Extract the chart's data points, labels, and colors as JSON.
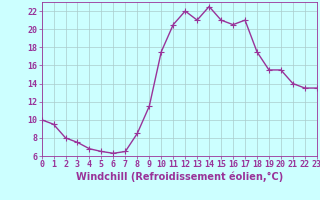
{
  "x": [
    0,
    1,
    2,
    3,
    4,
    5,
    6,
    7,
    8,
    9,
    10,
    11,
    12,
    13,
    14,
    15,
    16,
    17,
    18,
    19,
    20,
    21,
    22,
    23
  ],
  "y": [
    10,
    9.5,
    8,
    7.5,
    6.8,
    6.5,
    6.3,
    6.5,
    8.5,
    11.5,
    17.5,
    20.5,
    22,
    21,
    22.5,
    21,
    20.5,
    21,
    17.5,
    15.5,
    15.5,
    14,
    13.5,
    13.5
  ],
  "line_color": "#993399",
  "marker": "+",
  "marker_size": 4,
  "linewidth": 1.0,
  "bg_color": "#ccffff",
  "grid_color": "#aacccc",
  "xlabel": "Windchill (Refroidissement éolien,°C)",
  "xlabel_color": "#993399",
  "xlabel_fontsize": 7,
  "tick_color": "#993399",
  "tick_fontsize": 6,
  "ylim": [
    6,
    23
  ],
  "xlim": [
    0,
    23
  ],
  "yticks": [
    6,
    8,
    10,
    12,
    14,
    16,
    18,
    20,
    22
  ],
  "xticks": [
    0,
    1,
    2,
    3,
    4,
    5,
    6,
    7,
    8,
    9,
    10,
    11,
    12,
    13,
    14,
    15,
    16,
    17,
    18,
    19,
    20,
    21,
    22,
    23
  ]
}
